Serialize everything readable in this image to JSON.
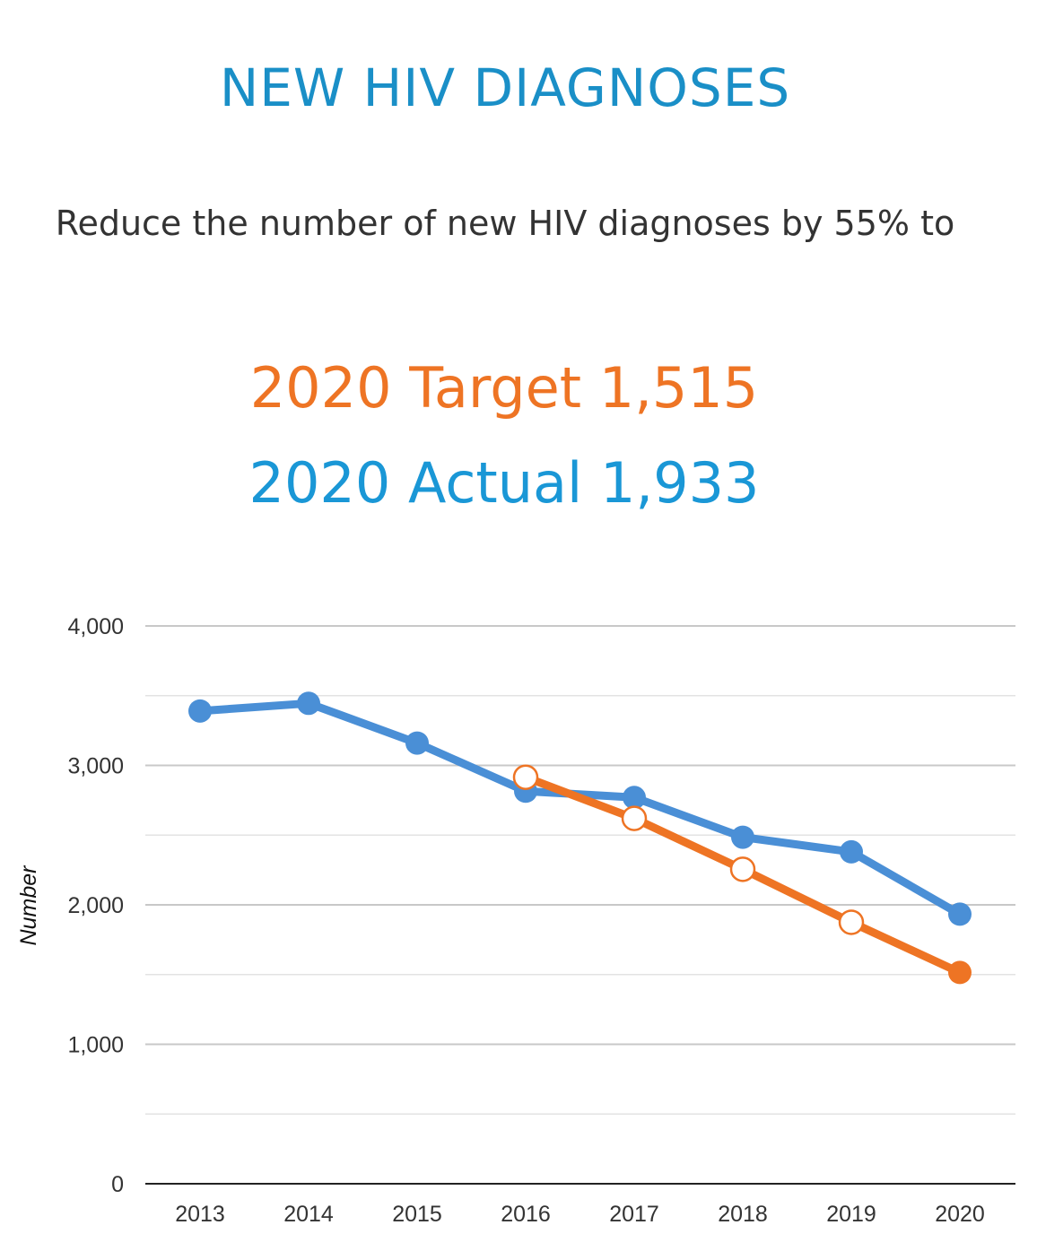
{
  "header": {
    "title": "NEW HIV DIAGNOSES",
    "subtitle": "Reduce the number of new HIV diagnoses by 55% to",
    "target_text": "2020 Target 1,515",
    "actual_text": "2020 Actual 1,933"
  },
  "colors": {
    "title": "#1a8fc7",
    "actual": "#4a8fd6",
    "target": "#ee7424"
  },
  "chart_data": {
    "type": "line",
    "x": [
      "2013",
      "2014",
      "2015",
      "2016",
      "2017",
      "2018",
      "2019",
      "2020"
    ],
    "ylabel": "Number",
    "ylim": [
      0,
      4000
    ],
    "yticks": [
      "0",
      "1,000",
      "2,000",
      "3,000",
      "4,000"
    ],
    "grid": true,
    "series": [
      {
        "key": "actual",
        "values": [
          3390,
          3445,
          3160,
          2815,
          2770,
          2485,
          2380,
          1933
        ]
      },
      {
        "key": "target",
        "values": [
          null,
          null,
          null,
          2915,
          2620,
          2255,
          1875,
          1515
        ]
      }
    ]
  }
}
